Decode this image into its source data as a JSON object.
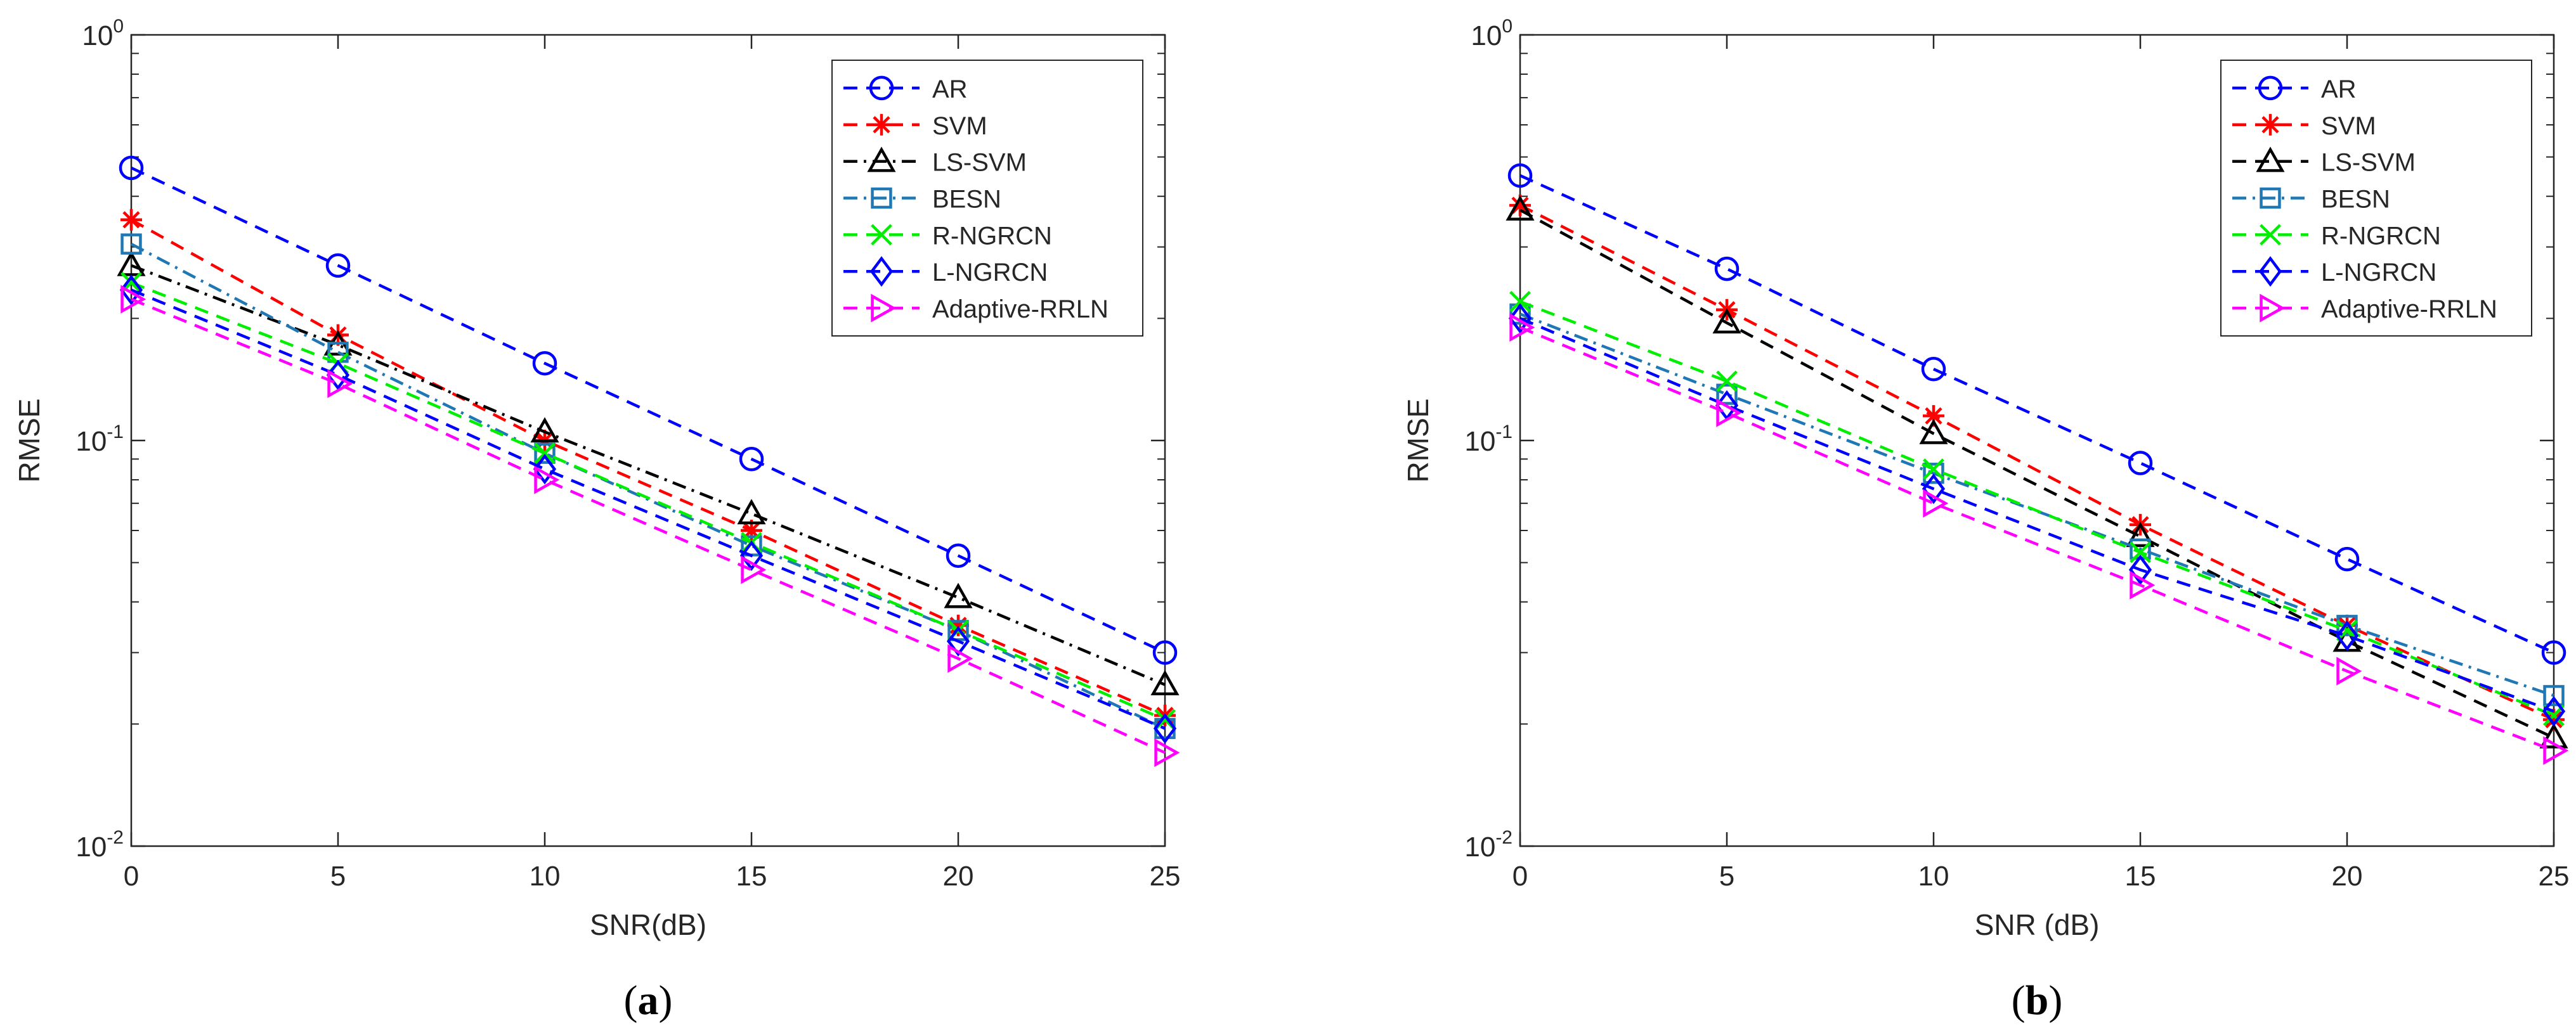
{
  "chart_data": [
    {
      "type": "line",
      "panel_label": "a",
      "xlabel": "SNR(dB)",
      "ylabel": "RMSE",
      "yscale": "log",
      "xlim": [
        0,
        25
      ],
      "ylim": [
        0.01,
        1
      ],
      "x": [
        0,
        5,
        10,
        15,
        20,
        25
      ],
      "xticks": [
        "0",
        "5",
        "10",
        "15",
        "20",
        "25"
      ],
      "yticks": [
        {
          "value": 1,
          "base": "10",
          "exp": "0"
        },
        {
          "value": 0.1,
          "base": "10",
          "exp": "-1"
        },
        {
          "value": 0.01,
          "base": "10",
          "exp": "-2"
        }
      ],
      "legend_position": "top-right",
      "series": [
        {
          "name": "AR",
          "color": "#0000ff",
          "marker": "circle",
          "dash": "dashed",
          "values": [
            0.47,
            0.27,
            0.155,
            0.09,
            0.052,
            0.03
          ]
        },
        {
          "name": "SVM",
          "color": "#ff0000",
          "marker": "asterisk",
          "dash": "dashed",
          "values": [
            0.35,
            0.182,
            0.1,
            0.06,
            0.035,
            0.021
          ]
        },
        {
          "name": "LS-SVM",
          "color": "#000000",
          "marker": "triangle",
          "dash": "dashdot",
          "values": [
            0.27,
            0.172,
            0.105,
            0.066,
            0.041,
            0.025
          ]
        },
        {
          "name": "BESN",
          "color": "#1f77b4",
          "marker": "square",
          "dash": "dashdot",
          "values": [
            0.305,
            0.165,
            0.093,
            0.055,
            0.034,
            0.0195
          ]
        },
        {
          "name": "R-NGRCN",
          "color": "#00ee00",
          "marker": "cross",
          "dash": "dashed",
          "values": [
            0.245,
            0.155,
            0.093,
            0.056,
            0.034,
            0.0205
          ]
        },
        {
          "name": "L-NGRCN",
          "color": "#0000ff",
          "marker": "diamond",
          "dash": "dashed",
          "values": [
            0.235,
            0.145,
            0.085,
            0.052,
            0.032,
            0.0195
          ]
        },
        {
          "name": "Adaptive-RRLN",
          "color": "#ff00ff",
          "marker": "triangle-right",
          "dash": "dashed",
          "values": [
            0.223,
            0.138,
            0.08,
            0.048,
            0.029,
            0.017
          ]
        }
      ]
    },
    {
      "type": "line",
      "panel_label": "b",
      "xlabel": "SNR (dB)",
      "ylabel": "RMSE",
      "yscale": "log",
      "xlim": [
        0,
        25
      ],
      "ylim": [
        0.01,
        1
      ],
      "x": [
        0,
        5,
        10,
        15,
        20,
        25
      ],
      "xticks": [
        "0",
        "5",
        "10",
        "15",
        "20",
        "25"
      ],
      "yticks": [
        {
          "value": 1,
          "base": "10",
          "exp": "0"
        },
        {
          "value": 0.1,
          "base": "10",
          "exp": "-1"
        },
        {
          "value": 0.01,
          "base": "10",
          "exp": "-2"
        }
      ],
      "legend_position": "top-right",
      "series": [
        {
          "name": "AR",
          "color": "#0000ff",
          "marker": "circle",
          "dash": "dashed",
          "values": [
            0.45,
            0.265,
            0.15,
            0.088,
            0.051,
            0.03
          ]
        },
        {
          "name": "SVM",
          "color": "#ff0000",
          "marker": "asterisk",
          "dash": "dashed",
          "values": [
            0.38,
            0.21,
            0.115,
            0.062,
            0.035,
            0.0205
          ]
        },
        {
          "name": "LS-SVM",
          "color": "#000000",
          "marker": "triangle",
          "dash": "dashed",
          "values": [
            0.37,
            0.195,
            0.104,
            0.058,
            0.032,
            0.0185
          ]
        },
        {
          "name": "BESN",
          "color": "#1f77b4",
          "marker": "square",
          "dash": "dashdot",
          "values": [
            0.205,
            0.13,
            0.083,
            0.054,
            0.035,
            0.0235
          ]
        },
        {
          "name": "R-NGRCN",
          "color": "#00ee00",
          "marker": "cross",
          "dash": "dashed",
          "values": [
            0.22,
            0.14,
            0.085,
            0.053,
            0.034,
            0.021
          ]
        },
        {
          "name": "L-NGRCN",
          "color": "#0000ff",
          "marker": "diamond",
          "dash": "dashed",
          "values": [
            0.2,
            0.122,
            0.076,
            0.048,
            0.033,
            0.0215
          ]
        },
        {
          "name": "Adaptive-RRLN",
          "color": "#ff00ff",
          "marker": "triangle-right",
          "dash": "dashed",
          "values": [
            0.19,
            0.117,
            0.07,
            0.044,
            0.027,
            0.0172
          ]
        }
      ]
    }
  ]
}
